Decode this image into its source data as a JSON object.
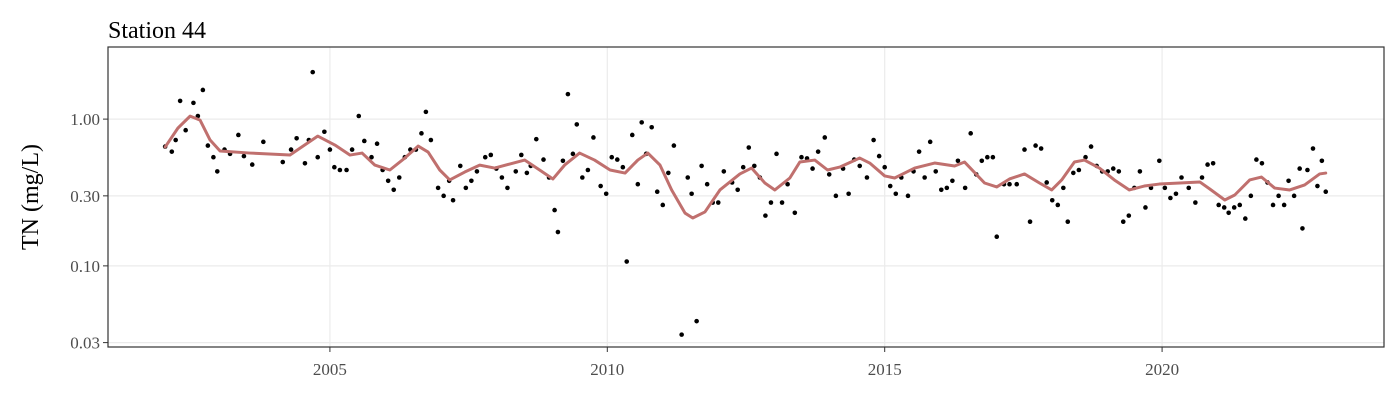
{
  "chart_data": {
    "type": "scatter",
    "title": "Station 44",
    "ylabel": "TN (mg/L)",
    "ylog": true,
    "grid": true,
    "xlim": [
      2001.0,
      2024.0
    ],
    "ylim": [
      0.028,
      3.1
    ],
    "xticks": [
      2005,
      2010,
      2015,
      2020
    ],
    "yticks": [
      {
        "value": 1.0,
        "label": "1.00"
      },
      {
        "value": 0.3,
        "label": "0.30"
      },
      {
        "value": 0.1,
        "label": "0.10"
      },
      {
        "value": 0.03,
        "label": "0.03"
      }
    ],
    "series": [
      {
        "type": "scatter",
        "color": "#000000",
        "x": [
          2002.03,
          2002.15,
          2002.22,
          2002.3,
          2002.4,
          2002.54,
          2002.62,
          2002.71,
          2002.8,
          2002.9,
          2002.97,
          2003.1,
          2003.2,
          2003.35,
          2003.45,
          2003.6,
          2003.8,
          2004.15,
          2004.3,
          2004.4,
          2004.55,
          2004.62,
          2004.69,
          2004.78,
          2004.9,
          2005.0,
          2005.08,
          2005.18,
          2005.3,
          2005.4,
          2005.52,
          2005.62,
          2005.75,
          2005.85,
          2005.95,
          2006.05,
          2006.15,
          2006.25,
          2006.35,
          2006.45,
          2006.55,
          2006.65,
          2006.73,
          2006.82,
          2006.95,
          2007.05,
          2007.15,
          2007.22,
          2007.35,
          2007.45,
          2007.55,
          2007.65,
          2007.8,
          2007.9,
          2008.0,
          2008.1,
          2008.2,
          2008.35,
          2008.45,
          2008.55,
          2008.62,
          2008.72,
          2008.85,
          2008.95,
          2009.05,
          2009.11,
          2009.2,
          2009.29,
          2009.38,
          2009.45,
          2009.55,
          2009.65,
          2009.75,
          2009.88,
          2009.98,
          2010.08,
          2010.18,
          2010.28,
          2010.35,
          2010.45,
          2010.55,
          2010.62,
          2010.7,
          2010.8,
          2010.9,
          2011.0,
          2011.1,
          2011.2,
          2011.34,
          2011.45,
          2011.52,
          2011.61,
          2011.7,
          2011.8,
          2011.9,
          2012.0,
          2012.1,
          2012.25,
          2012.35,
          2012.45,
          2012.55,
          2012.65,
          2012.75,
          2012.85,
          2012.95,
          2013.05,
          2013.15,
          2013.25,
          2013.38,
          2013.5,
          2013.6,
          2013.7,
          2013.8,
          2013.92,
          2014.0,
          2014.12,
          2014.25,
          2014.35,
          2014.45,
          2014.55,
          2014.68,
          2014.8,
          2014.9,
          2015.0,
          2015.1,
          2015.2,
          2015.3,
          2015.42,
          2015.52,
          2015.62,
          2015.72,
          2015.82,
          2015.92,
          2016.02,
          2016.12,
          2016.22,
          2016.32,
          2016.45,
          2016.55,
          2016.65,
          2016.75,
          2016.85,
          2016.95,
          2017.02,
          2017.15,
          2017.25,
          2017.38,
          2017.52,
          2017.62,
          2017.72,
          2017.82,
          2017.92,
          2018.02,
          2018.12,
          2018.22,
          2018.3,
          2018.4,
          2018.5,
          2018.62,
          2018.72,
          2018.82,
          2018.92,
          2019.02,
          2019.12,
          2019.22,
          2019.3,
          2019.4,
          2019.5,
          2019.6,
          2019.7,
          2019.8,
          2019.95,
          2020.05,
          2020.15,
          2020.25,
          2020.35,
          2020.48,
          2020.6,
          2020.72,
          2020.82,
          2020.92,
          2021.02,
          2021.12,
          2021.2,
          2021.3,
          2021.4,
          2021.5,
          2021.6,
          2021.7,
          2021.8,
          2021.9,
          2022.0,
          2022.1,
          2022.2,
          2022.28,
          2022.38,
          2022.48,
          2022.53,
          2022.62,
          2022.72,
          2022.8,
          2022.88,
          2022.95
        ],
        "values": [
          0.65,
          0.6,
          0.72,
          1.33,
          0.84,
          1.29,
          1.05,
          1.58,
          0.66,
          0.55,
          0.44,
          0.62,
          0.58,
          0.78,
          0.56,
          0.49,
          0.7,
          0.51,
          0.62,
          0.74,
          0.5,
          0.72,
          2.09,
          0.55,
          0.82,
          0.62,
          0.47,
          0.45,
          0.45,
          0.62,
          1.05,
          0.71,
          0.55,
          0.68,
          0.45,
          0.38,
          0.33,
          0.4,
          0.55,
          0.62,
          0.62,
          0.8,
          1.12,
          0.72,
          0.34,
          0.3,
          0.38,
          0.28,
          0.48,
          0.34,
          0.38,
          0.44,
          0.55,
          0.57,
          0.46,
          0.4,
          0.34,
          0.44,
          0.57,
          0.43,
          0.48,
          0.73,
          0.53,
          0.4,
          0.24,
          0.17,
          0.52,
          1.48,
          0.58,
          0.92,
          0.4,
          0.45,
          0.75,
          0.35,
          0.31,
          0.55,
          0.53,
          0.47,
          0.107,
          0.78,
          0.36,
          0.95,
          0.58,
          0.88,
          0.32,
          0.26,
          0.43,
          0.66,
          0.034,
          0.4,
          0.31,
          0.042,
          0.48,
          0.36,
          0.27,
          0.27,
          0.44,
          0.37,
          0.33,
          0.47,
          0.64,
          0.48,
          0.4,
          0.22,
          0.27,
          0.58,
          0.27,
          0.36,
          0.23,
          0.55,
          0.54,
          0.46,
          0.6,
          0.75,
          0.42,
          0.3,
          0.46,
          0.31,
          0.53,
          0.48,
          0.4,
          0.72,
          0.56,
          0.47,
          0.35,
          0.31,
          0.4,
          0.3,
          0.44,
          0.6,
          0.4,
          0.7,
          0.44,
          0.33,
          0.34,
          0.38,
          0.52,
          0.34,
          0.8,
          0.42,
          0.52,
          0.55,
          0.55,
          0.158,
          0.36,
          0.36,
          0.36,
          0.62,
          0.2,
          0.66,
          0.63,
          0.37,
          0.28,
          0.26,
          0.34,
          0.2,
          0.43,
          0.45,
          0.55,
          0.65,
          0.48,
          0.44,
          0.44,
          0.46,
          0.44,
          0.2,
          0.22,
          0.34,
          0.44,
          0.25,
          0.34,
          0.52,
          0.34,
          0.29,
          0.31,
          0.4,
          0.34,
          0.27,
          0.4,
          0.49,
          0.5,
          0.26,
          0.25,
          0.23,
          0.25,
          0.26,
          0.21,
          0.3,
          0.53,
          0.5,
          0.37,
          0.26,
          0.3,
          0.26,
          0.38,
          0.3,
          0.46,
          0.18,
          0.45,
          0.63,
          0.35,
          0.52,
          0.32
        ]
      },
      {
        "type": "line",
        "color": "#c0706e",
        "x": [
          2002.03,
          2002.26,
          2002.48,
          2002.66,
          2002.84,
          2003.02,
          2003.56,
          2004.28,
          2004.78,
          2005.09,
          2005.36,
          2005.58,
          2005.81,
          2006.08,
          2006.35,
          2006.59,
          2006.77,
          2006.98,
          2007.16,
          2007.43,
          2007.7,
          2007.97,
          2008.24,
          2008.51,
          2008.78,
          2009.02,
          2009.23,
          2009.5,
          2009.77,
          2010.05,
          2010.32,
          2010.55,
          2010.73,
          2010.95,
          2011.16,
          2011.4,
          2011.54,
          2011.76,
          2012.03,
          2012.39,
          2012.6,
          2012.84,
          2013.02,
          2013.29,
          2013.47,
          2013.74,
          2013.97,
          2014.19,
          2014.55,
          2014.73,
          2015.0,
          2015.18,
          2015.54,
          2015.9,
          2016.26,
          2016.44,
          2016.8,
          2017.02,
          2017.25,
          2017.52,
          2017.79,
          2018.01,
          2018.19,
          2018.42,
          2018.6,
          2018.87,
          2019.14,
          2019.41,
          2019.68,
          2019.95,
          2020.32,
          2020.68,
          2020.86,
          2021.13,
          2021.31,
          2021.58,
          2021.79,
          2022.03,
          2022.3,
          2022.57,
          2022.84,
          2022.95
        ],
        "values": [
          0.645,
          0.868,
          1.048,
          0.984,
          0.72,
          0.606,
          0.587,
          0.569,
          0.766,
          0.666,
          0.569,
          0.587,
          0.486,
          0.45,
          0.543,
          0.655,
          0.596,
          0.45,
          0.385,
          0.436,
          0.486,
          0.464,
          0.494,
          0.526,
          0.45,
          0.391,
          0.486,
          0.587,
          0.526,
          0.45,
          0.429,
          0.526,
          0.587,
          0.486,
          0.329,
          0.229,
          0.212,
          0.233,
          0.329,
          0.423,
          0.464,
          0.367,
          0.329,
          0.397,
          0.51,
          0.526,
          0.45,
          0.471,
          0.543,
          0.502,
          0.41,
          0.397,
          0.464,
          0.502,
          0.479,
          0.51,
          0.367,
          0.345,
          0.391,
          0.423,
          0.367,
          0.329,
          0.385,
          0.51,
          0.526,
          0.464,
          0.385,
          0.329,
          0.35,
          0.361,
          0.367,
          0.373,
          0.334,
          0.281,
          0.304,
          0.385,
          0.403,
          0.339,
          0.329,
          0.356,
          0.423,
          0.429
        ]
      }
    ]
  }
}
